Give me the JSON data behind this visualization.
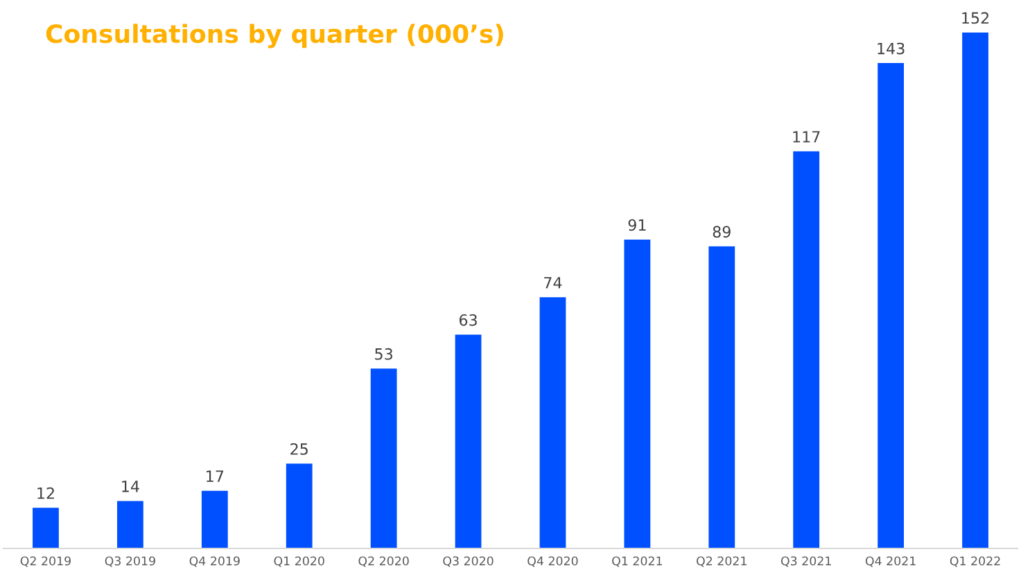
{
  "chart_data": {
    "type": "bar",
    "title": "Consultations by quarter (000’s)",
    "categories": [
      "Q2 2019",
      "Q3 2019",
      "Q4 2019",
      "Q1 2020",
      "Q2 2020",
      "Q3 2020",
      "Q4 2020",
      "Q1 2021",
      "Q2 2021",
      "Q3 2021",
      "Q4 2021",
      "Q1 2022"
    ],
    "values": [
      12,
      14,
      17,
      25,
      53,
      63,
      74,
      91,
      89,
      117,
      143,
      152
    ],
    "color": "#0050ff",
    "data_labels": true
  }
}
